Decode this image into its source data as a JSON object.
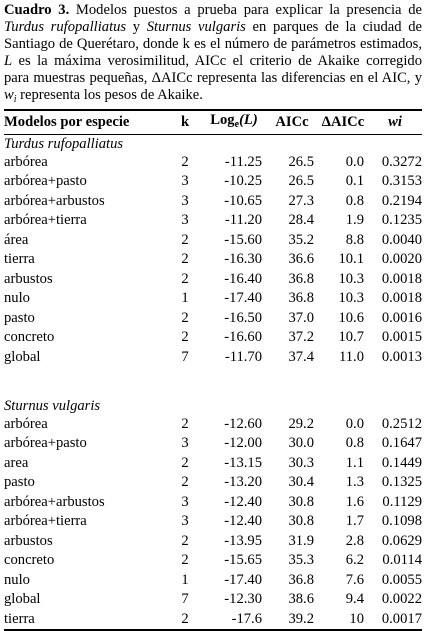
{
  "caption": {
    "label": "Cuadro 3.",
    "p1": " Modelos puestos a prueba para explicar la presencia de ",
    "sp1": "Turdus rufopalliatus",
    "p2": " y ",
    "sp2": "Sturnus vulgaris",
    "p3": " en parques de la ciudad de Santiago de Querétaro, donde k es el número de parámetros estimados, ",
    "L": "L",
    "p4": " es la máxima verosimilitud, AICc el criterio de Akaike corregido para muestras pequeñas, ΔAICc representa las diferencias en el AIC, y ",
    "w": "w",
    "wsub": "i",
    "p5": " representa los pesos de Akaike."
  },
  "headers": {
    "model": "Modelos por especie",
    "k": "k",
    "log_pre": "Log",
    "log_sub": "e",
    "log_post": "(L)",
    "aicc": "AICc",
    "daicc": "ΔAICc",
    "wi": "wi"
  },
  "groups": [
    {
      "species": "Turdus rufopalliatus",
      "rows": [
        {
          "model": "arbórea",
          "k": "2",
          "log": "-11.25",
          "aicc": "26.5",
          "daicc": "0.0",
          "wi": "0.3272"
        },
        {
          "model": "arbórea+pasto",
          "k": "3",
          "log": "-10.25",
          "aicc": "26.5",
          "daicc": "0.1",
          "wi": "0.3153"
        },
        {
          "model": "arbórea+arbustos",
          "k": "3",
          "log": "-10.65",
          "aicc": "27.3",
          "daicc": "0.8",
          "wi": "0.2194"
        },
        {
          "model": "arbórea+tierra",
          "k": "3",
          "log": "-11.20",
          "aicc": "28.4",
          "daicc": "1.9",
          "wi": "0.1235"
        },
        {
          "model": "área",
          "k": "2",
          "log": "-15.60",
          "aicc": "35.2",
          "daicc": "8.8",
          "wi": "0.0040"
        },
        {
          "model": "tierra",
          "k": "2",
          "log": "-16.30",
          "aicc": "36.6",
          "daicc": "10.1",
          "wi": "0.0020"
        },
        {
          "model": "arbustos",
          "k": "2",
          "log": "-16.40",
          "aicc": "36.8",
          "daicc": "10.3",
          "wi": "0.0018"
        },
        {
          "model": "nulo",
          "k": "1",
          "log": "-17.40",
          "aicc": "36.8",
          "daicc": "10.3",
          "wi": "0.0018"
        },
        {
          "model": "pasto",
          "k": "2",
          "log": "-16.50",
          "aicc": "37.0",
          "daicc": "10.6",
          "wi": "0.0016"
        },
        {
          "model": "concreto",
          "k": "2",
          "log": "-16.60",
          "aicc": "37.2",
          "daicc": "10.7",
          "wi": "0.0015"
        },
        {
          "model": "global",
          "k": "7",
          "log": "-11.70",
          "aicc": "37.4",
          "daicc": "11.0",
          "wi": "0.0013"
        }
      ]
    },
    {
      "species": "Sturnus vulgaris",
      "rows": [
        {
          "model": "arbórea",
          "k": "2",
          "log": "-12.60",
          "aicc": "29.2",
          "daicc": "0.0",
          "wi": "0.2512"
        },
        {
          "model": "arbórea+pasto",
          "k": "3",
          "log": "-12.00",
          "aicc": "30.0",
          "daicc": "0.8",
          "wi": "0.1647"
        },
        {
          "model": "area",
          "k": "2",
          "log": "-13.15",
          "aicc": "30.3",
          "daicc": "1.1",
          "wi": "0.1449"
        },
        {
          "model": "pasto",
          "k": "2",
          "log": "-13.20",
          "aicc": "30.4",
          "daicc": "1.3",
          "wi": "0.1325"
        },
        {
          "model": "arbórea+arbustos",
          "k": "3",
          "log": "-12.40",
          "aicc": "30.8",
          "daicc": "1.6",
          "wi": "0.1129"
        },
        {
          "model": "arbórea+tierra",
          "k": "3",
          "log": "-12.40",
          "aicc": "30.8",
          "daicc": "1.7",
          "wi": "0.1098"
        },
        {
          "model": "arbustos",
          "k": "2",
          "log": "-13.95",
          "aicc": "31.9",
          "daicc": "2.8",
          "wi": "0.0629"
        },
        {
          "model": "concreto",
          "k": "2",
          "log": "-15.65",
          "aicc": "35.3",
          "daicc": "6.2",
          "wi": "0.0114"
        },
        {
          "model": "nulo",
          "k": "1",
          "log": "-17.40",
          "aicc": "36.8",
          "daicc": "7.6",
          "wi": "0.0055"
        },
        {
          "model": "global",
          "k": "7",
          "log": "-12.30",
          "aicc": "38.6",
          "daicc": "9.4",
          "wi": "0.0022"
        },
        {
          "model": "tierra",
          "k": "2",
          "log": "-17.6",
          "aicc": "39.2",
          "daicc": "10",
          "wi": "0.0017"
        }
      ]
    }
  ]
}
